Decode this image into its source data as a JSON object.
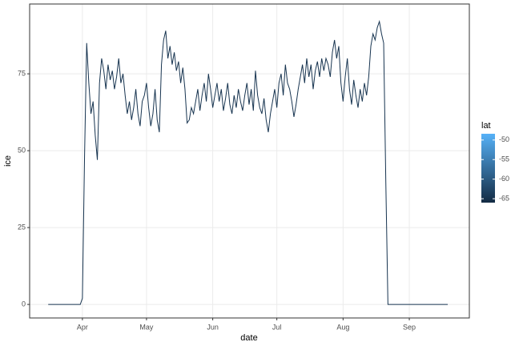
{
  "chart_data": {
    "type": "line",
    "x_label": "date",
    "y_label": "ice",
    "x": [
      75,
      76,
      77,
      78,
      79,
      80,
      81,
      82,
      83,
      84,
      85,
      86,
      87,
      88,
      89,
      90,
      91,
      92,
      93,
      94,
      95,
      96,
      97,
      98,
      99,
      100,
      101,
      102,
      103,
      104,
      105,
      106,
      107,
      108,
      109,
      110,
      111,
      112,
      113,
      114,
      115,
      116,
      117,
      118,
      119,
      120,
      121,
      122,
      123,
      124,
      125,
      126,
      127,
      128,
      129,
      130,
      131,
      132,
      133,
      134,
      135,
      136,
      137,
      138,
      139,
      140,
      141,
      142,
      143,
      144,
      145,
      146,
      147,
      148,
      149,
      150,
      151,
      152,
      153,
      154,
      155,
      156,
      157,
      158,
      159,
      160,
      161,
      162,
      163,
      164,
      165,
      166,
      167,
      168,
      169,
      170,
      171,
      172,
      173,
      174,
      175,
      176,
      177,
      178,
      179,
      180,
      181,
      182,
      183,
      184,
      185,
      186,
      187,
      188,
      189,
      190,
      191,
      192,
      193,
      194,
      195,
      196,
      197,
      198,
      199,
      200,
      201,
      202,
      203,
      204,
      205,
      206,
      207,
      208,
      209,
      210,
      211,
      212,
      213,
      214,
      215,
      216,
      217,
      218,
      219,
      220,
      221,
      222,
      223,
      224,
      225,
      226,
      227,
      228,
      229,
      230,
      231,
      232,
      233,
      234,
      235,
      236,
      237,
      238,
      239,
      240,
      241,
      242,
      243,
      244,
      245,
      246,
      247,
      248,
      249,
      250,
      251,
      252,
      253,
      254,
      255,
      256,
      257,
      258,
      259,
      260,
      261,
      262
    ],
    "series": [
      {
        "color": "#173450",
        "values": [
          0,
          0,
          0,
          0,
          0,
          0,
          0,
          0,
          0,
          0,
          0,
          0,
          0,
          0,
          0,
          0,
          2,
          48,
          85,
          72,
          62,
          66,
          55,
          47,
          72,
          80,
          76,
          70,
          78,
          73,
          76,
          70,
          74,
          80,
          72,
          75,
          68,
          62,
          66,
          60,
          64,
          70,
          62,
          58,
          66,
          68,
          72,
          64,
          58,
          62,
          70,
          60,
          56,
          78,
          86,
          89,
          80,
          84,
          78,
          82,
          76,
          79,
          72,
          77,
          70,
          59,
          60,
          64,
          62,
          66,
          70,
          63,
          68,
          72,
          66,
          75,
          70,
          64,
          68,
          72,
          66,
          70,
          63,
          67,
          72,
          65,
          62,
          68,
          64,
          70,
          66,
          63,
          68,
          72,
          65,
          70,
          63,
          76,
          68,
          64,
          62,
          67,
          60,
          56,
          62,
          66,
          70,
          64,
          72,
          75,
          68,
          78,
          72,
          70,
          66,
          61,
          65,
          70,
          74,
          78,
          72,
          80,
          74,
          78,
          70,
          76,
          79,
          74,
          80,
          76,
          80,
          78,
          74,
          82,
          86,
          80,
          84,
          72,
          66,
          74,
          80,
          70,
          65,
          73,
          68,
          64,
          70,
          66,
          72,
          68,
          74,
          84,
          88,
          86,
          90,
          92,
          88,
          85,
          40,
          0,
          0,
          0,
          0,
          0,
          0,
          0,
          0,
          0,
          0,
          0,
          0,
          0,
          0,
          0,
          0,
          0,
          0,
          0,
          0,
          0,
          0,
          0,
          0,
          0,
          0,
          0,
          0,
          0
        ]
      }
    ],
    "xlim": [
      66.3,
      272.1
    ],
    "xticks": [
      {
        "value": 91,
        "label": "Apr"
      },
      {
        "value": 121,
        "label": "May"
      },
      {
        "value": 152,
        "label": "Jun"
      },
      {
        "value": 182,
        "label": "Jul"
      },
      {
        "value": 213,
        "label": "Aug"
      },
      {
        "value": 244,
        "label": "Sep"
      }
    ],
    "ylim": [
      -4.4,
      97.7
    ],
    "yticks": [
      0,
      25,
      50,
      75
    ],
    "grid": true,
    "color_scale": {
      "name": "lat",
      "lim": [
        -66,
        -48.4
      ],
      "ticks": [
        -50,
        -55,
        -60,
        -65
      ],
      "colors": [
        "#132B43",
        "#56B1F7"
      ]
    }
  }
}
